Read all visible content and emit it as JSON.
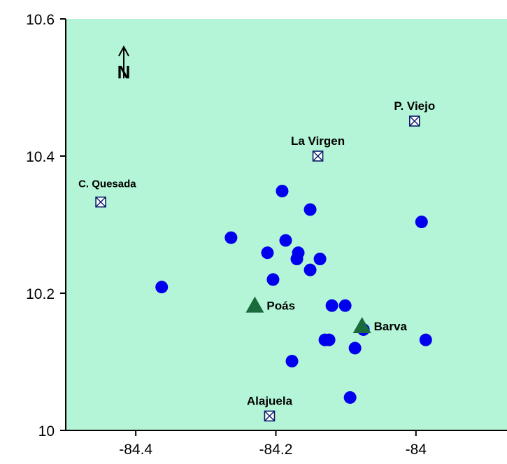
{
  "chart_data": {
    "type": "scatter",
    "title": "",
    "xlabel": "",
    "ylabel": "",
    "xlim": [
      -84.5,
      -83.87
    ],
    "ylim": [
      10.0,
      10.6
    ],
    "x_ticks": [
      {
        "value": -84.4,
        "label": "-84.4"
      },
      {
        "value": -84.2,
        "label": "-84.2"
      },
      {
        "value": -84.0,
        "label": "-84"
      }
    ],
    "y_ticks": [
      {
        "value": 10.0,
        "label": "10"
      },
      {
        "value": 10.2,
        "label": "10.2"
      },
      {
        "value": 10.4,
        "label": "10.4"
      },
      {
        "value": 10.6,
        "label": "10.6"
      }
    ],
    "grid": false,
    "colors": {
      "background": "#b3f5d6",
      "points": "#0000ee",
      "volcano": "#1a6b3c",
      "town_marker": "#0a1a6b"
    },
    "points": [
      {
        "x": -84.363,
        "y": 10.209
      },
      {
        "x": -84.264,
        "y": 10.281
      },
      {
        "x": -84.191,
        "y": 10.349
      },
      {
        "x": -84.151,
        "y": 10.322
      },
      {
        "x": -84.186,
        "y": 10.277
      },
      {
        "x": -84.212,
        "y": 10.259
      },
      {
        "x": -84.168,
        "y": 10.259
      },
      {
        "x": -84.17,
        "y": 10.25
      },
      {
        "x": -84.137,
        "y": 10.25
      },
      {
        "x": -84.151,
        "y": 10.234
      },
      {
        "x": -84.204,
        "y": 10.22
      },
      {
        "x": -84.12,
        "y": 10.182
      },
      {
        "x": -84.101,
        "y": 10.182
      },
      {
        "x": -84.075,
        "y": 10.147
      },
      {
        "x": -83.992,
        "y": 10.304
      },
      {
        "x": -83.986,
        "y": 10.132
      },
      {
        "x": -84.13,
        "y": 10.132
      },
      {
        "x": -84.124,
        "y": 10.132
      },
      {
        "x": -84.087,
        "y": 10.12
      },
      {
        "x": -84.177,
        "y": 10.101
      },
      {
        "x": -84.094,
        "y": 10.048
      }
    ],
    "volcanoes": [
      {
        "name": "Poás",
        "x": -84.23,
        "y": 10.182
      },
      {
        "name": "Barva",
        "x": -84.077,
        "y": 10.152
      }
    ],
    "towns": [
      {
        "name": "C. Quesada",
        "x": -84.45,
        "y": 10.333
      },
      {
        "name": "La Virgen",
        "x": -84.14,
        "y": 10.4
      },
      {
        "name": "P. Viejo",
        "x": -84.002,
        "y": 10.451
      },
      {
        "name": "Alajuela",
        "x": -84.209,
        "y": 10.021
      }
    ]
  },
  "north_arrow": {
    "label": "N"
  }
}
